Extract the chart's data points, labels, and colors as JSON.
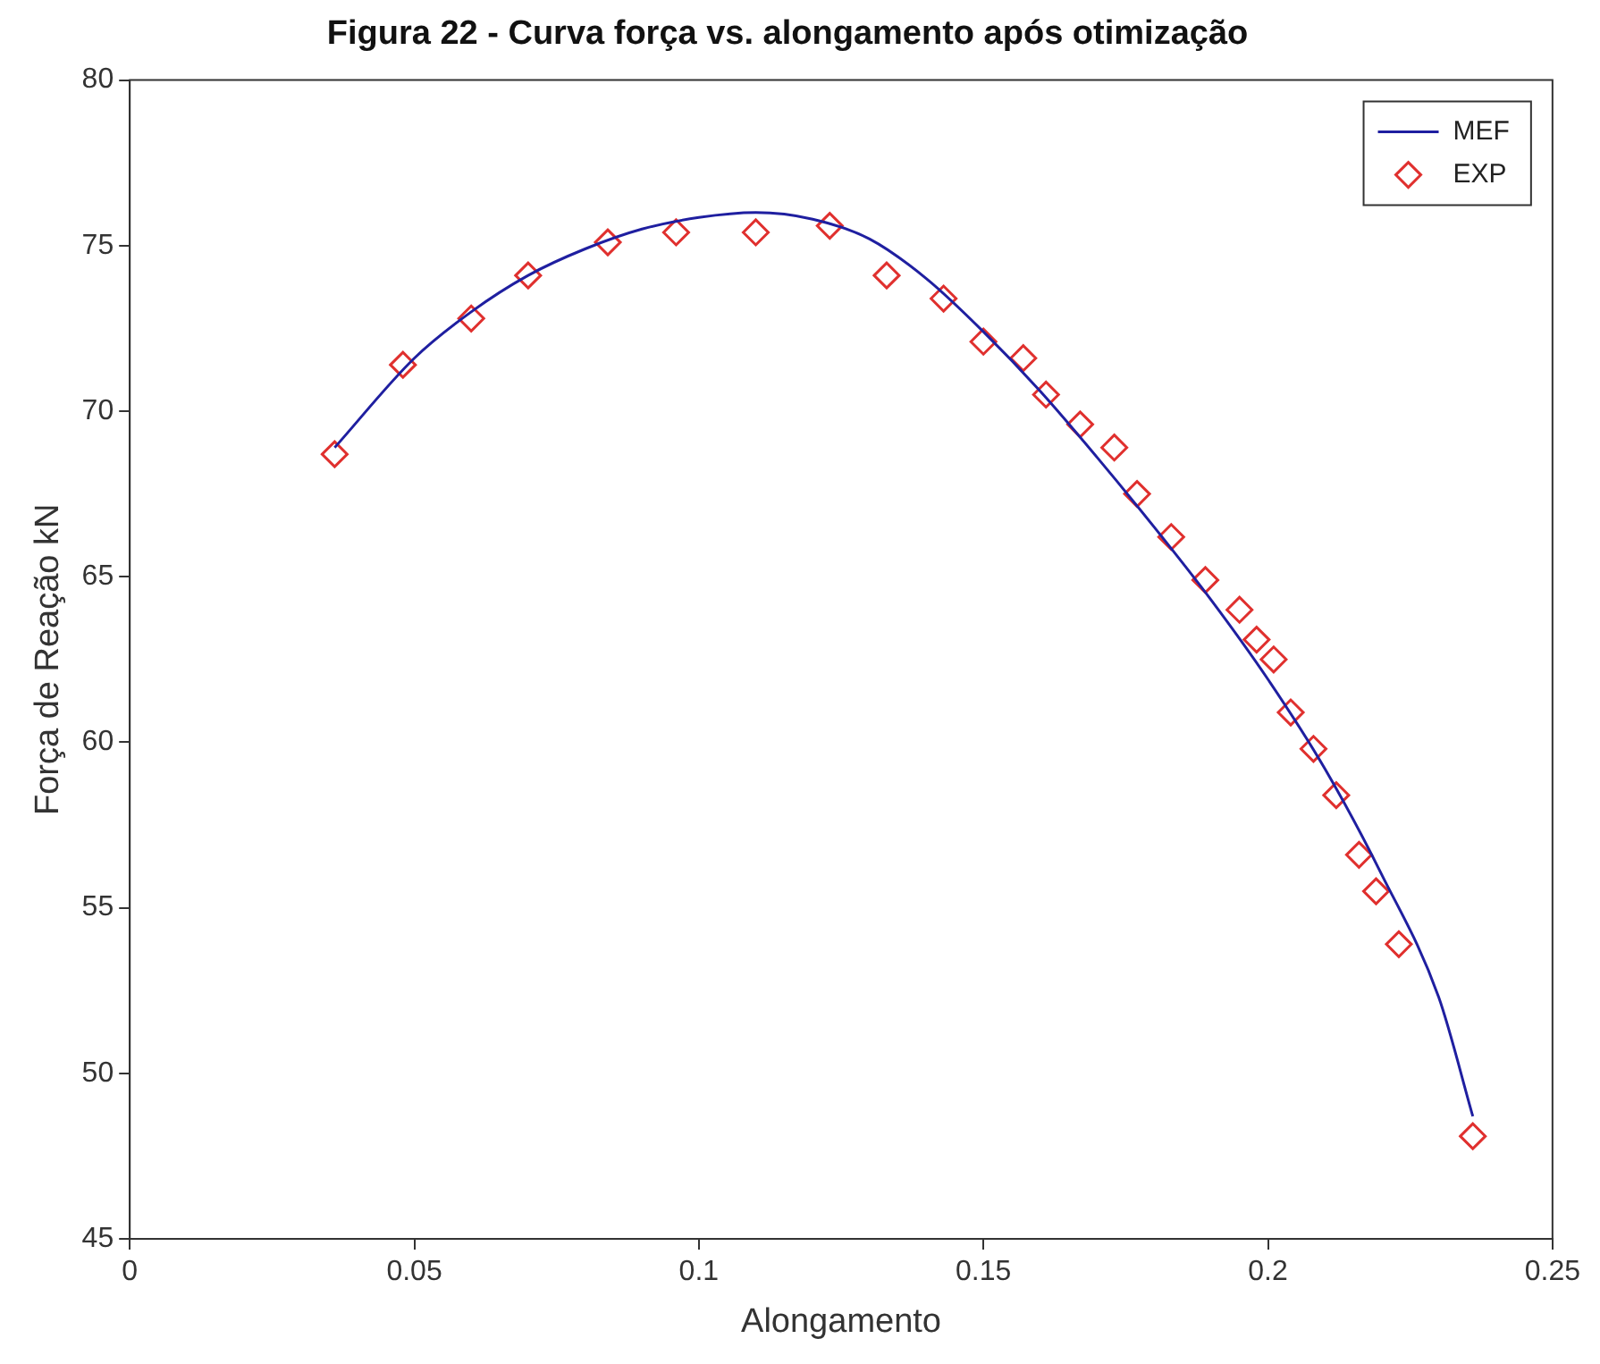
{
  "chart_data": {
    "type": "line",
    "title": "Figura 22 - Curva força vs. alongamento após otimização",
    "xlabel": "Alongamento",
    "ylabel": "Força de Reação kN",
    "xlim": [
      0,
      0.25
    ],
    "xticks": [
      0,
      0.05,
      0.1,
      0.15,
      0.2,
      0.25
    ],
    "ylim": [
      45,
      80
    ],
    "yticks": [
      45,
      50,
      55,
      60,
      65,
      70,
      75,
      80
    ],
    "legend": "top right",
    "series": [
      {
        "name": "MEF",
        "color": "#1f1fa0",
        "marker": "none",
        "x": [
          0.036,
          0.05,
          0.06,
          0.07,
          0.08,
          0.09,
          0.1,
          0.11,
          0.12,
          0.13,
          0.14,
          0.15,
          0.16,
          0.17,
          0.18,
          0.19,
          0.2,
          0.21,
          0.22,
          0.23,
          0.236
        ],
        "values": [
          68.9,
          71.6,
          73.0,
          74.1,
          74.9,
          75.5,
          75.85,
          76.0,
          75.8,
          75.2,
          74.0,
          72.4,
          70.6,
          68.6,
          66.5,
          64.3,
          61.9,
          59.2,
          56.0,
          52.3,
          48.7
        ]
      },
      {
        "name": "EXP",
        "type": "scatter",
        "color": "#e0302e",
        "marker": "diamond",
        "x": [
          0.036,
          0.048,
          0.06,
          0.07,
          0.084,
          0.096,
          0.11,
          0.123,
          0.133,
          0.143,
          0.15,
          0.157,
          0.161,
          0.167,
          0.173,
          0.177,
          0.183,
          0.189,
          0.195,
          0.198,
          0.201,
          0.204,
          0.208,
          0.212,
          0.216,
          0.219,
          0.223,
          0.236
        ],
        "values": [
          68.7,
          71.4,
          72.8,
          74.1,
          75.1,
          75.4,
          75.4,
          75.6,
          74.1,
          73.4,
          72.1,
          71.6,
          70.5,
          69.6,
          68.9,
          67.5,
          66.2,
          64.9,
          64.0,
          63.1,
          62.5,
          60.9,
          59.8,
          58.4,
          56.6,
          55.5,
          53.9,
          48.1
        ]
      }
    ]
  }
}
